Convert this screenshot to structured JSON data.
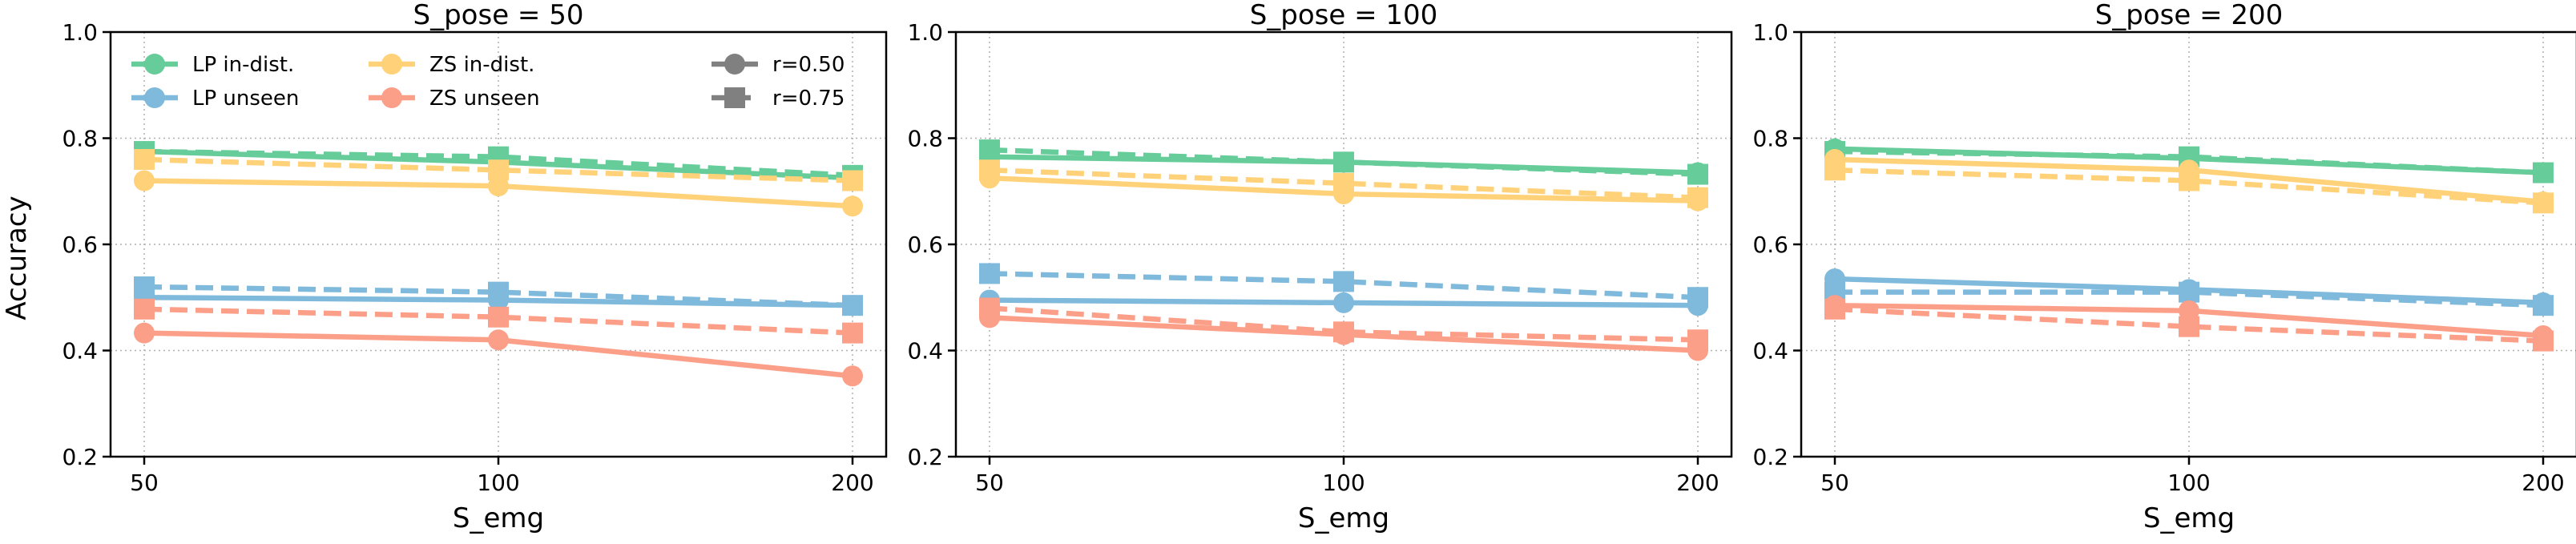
{
  "chart_data": {
    "type": "line",
    "ylabel": "Accuracy",
    "xlabel": "S_emg",
    "x": [
      50,
      100,
      200
    ],
    "xticks": [
      "50",
      "100",
      "200"
    ],
    "ylim": [
      0.2,
      1.0
    ],
    "yticks": [
      "0.2",
      "0.4",
      "0.6",
      "0.8",
      "1.0"
    ],
    "grid": true,
    "legend": {
      "placement": "top",
      "series_entries": [
        {
          "label": "LP in-dist.",
          "color": "#66cc99"
        },
        {
          "label": "LP unseen",
          "color": "#7fb9db"
        },
        {
          "label": "ZS in-dist.",
          "color": "#ffd27a"
        },
        {
          "label": "ZS unseen",
          "color": "#fb9f89"
        }
      ],
      "style_entries": [
        {
          "label": "r=0.50",
          "marker": "circle",
          "line": "solid",
          "color": "#808080"
        },
        {
          "label": "r=0.75",
          "marker": "square",
          "line": "dashed",
          "color": "#808080"
        }
      ]
    },
    "panels": [
      {
        "title": "S_pose = 50",
        "series": [
          {
            "name": "LP in-dist.",
            "r": "0.75",
            "color": "#66cc99",
            "values": [
              0.775,
              0.765,
              0.73
            ]
          },
          {
            "name": "LP in-dist.",
            "r": "0.50",
            "color": "#66cc99",
            "values": [
              0.775,
              0.755,
              0.725
            ]
          },
          {
            "name": "ZS in-dist.",
            "r": "0.75",
            "color": "#ffd27a",
            "values": [
              0.76,
              0.74,
              0.72
            ]
          },
          {
            "name": "ZS in-dist.",
            "r": "0.50",
            "color": "#ffd27a",
            "values": [
              0.72,
              0.71,
              0.672
            ]
          },
          {
            "name": "LP unseen",
            "r": "0.75",
            "color": "#7fb9db",
            "values": [
              0.52,
              0.51,
              0.485
            ]
          },
          {
            "name": "LP unseen",
            "r": "0.50",
            "color": "#7fb9db",
            "values": [
              0.5,
              0.495,
              0.485
            ]
          },
          {
            "name": "ZS unseen",
            "r": "0.75",
            "color": "#fb9f89",
            "values": [
              0.478,
              0.463,
              0.433
            ]
          },
          {
            "name": "ZS unseen",
            "r": "0.50",
            "color": "#fb9f89",
            "values": [
              0.433,
              0.42,
              0.352
            ]
          }
        ]
      },
      {
        "title": "S_pose = 100",
        "series": [
          {
            "name": "LP in-dist.",
            "r": "0.75",
            "color": "#66cc99",
            "values": [
              0.778,
              0.755,
              0.732
            ]
          },
          {
            "name": "LP in-dist.",
            "r": "0.50",
            "color": "#66cc99",
            "values": [
              0.765,
              0.755,
              0.735
            ]
          },
          {
            "name": "ZS in-dist.",
            "r": "0.75",
            "color": "#ffd27a",
            "values": [
              0.74,
              0.715,
              0.688
            ]
          },
          {
            "name": "ZS in-dist.",
            "r": "0.50",
            "color": "#ffd27a",
            "values": [
              0.725,
              0.695,
              0.682
            ]
          },
          {
            "name": "LP unseen",
            "r": "0.75",
            "color": "#7fb9db",
            "values": [
              0.545,
              0.53,
              0.5
            ]
          },
          {
            "name": "LP unseen",
            "r": "0.50",
            "color": "#7fb9db",
            "values": [
              0.495,
              0.49,
              0.485
            ]
          },
          {
            "name": "ZS unseen",
            "r": "0.75",
            "color": "#fb9f89",
            "values": [
              0.48,
              0.435,
              0.42
            ]
          },
          {
            "name": "ZS unseen",
            "r": "0.50",
            "color": "#fb9f89",
            "values": [
              0.462,
              0.43,
              0.4
            ]
          }
        ]
      },
      {
        "title": "S_pose = 200",
        "series": [
          {
            "name": "LP in-dist.",
            "r": "0.75",
            "color": "#66cc99",
            "values": [
              0.775,
              0.765,
              0.735
            ]
          },
          {
            "name": "LP in-dist.",
            "r": "0.50",
            "color": "#66cc99",
            "values": [
              0.78,
              0.762,
              0.735
            ]
          },
          {
            "name": "ZS in-dist.",
            "r": "0.75",
            "color": "#ffd27a",
            "values": [
              0.74,
              0.72,
              0.678
            ]
          },
          {
            "name": "ZS in-dist.",
            "r": "0.50",
            "color": "#ffd27a",
            "values": [
              0.76,
              0.74,
              0.68
            ]
          },
          {
            "name": "LP unseen",
            "r": "0.75",
            "color": "#7fb9db",
            "values": [
              0.51,
              0.51,
              0.485
            ]
          },
          {
            "name": "LP unseen",
            "r": "0.50",
            "color": "#7fb9db",
            "values": [
              0.535,
              0.515,
              0.49
            ]
          },
          {
            "name": "ZS unseen",
            "r": "0.75",
            "color": "#fb9f89",
            "values": [
              0.478,
              0.445,
              0.418
            ]
          },
          {
            "name": "ZS unseen",
            "r": "0.50",
            "color": "#fb9f89",
            "values": [
              0.485,
              0.475,
              0.428
            ]
          }
        ]
      }
    ]
  }
}
